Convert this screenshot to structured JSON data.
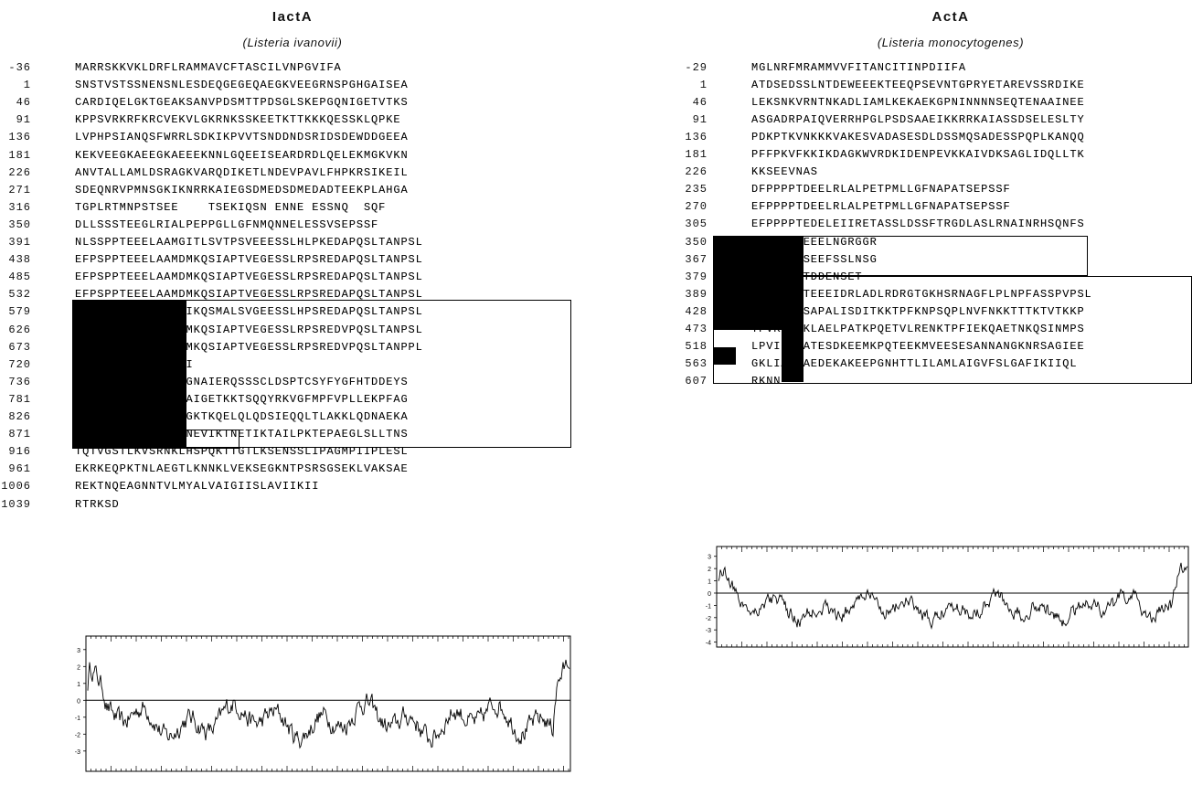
{
  "left": {
    "title": "IactA",
    "species": "(Listeria ivanovii)",
    "rows": [
      {
        "num": "-36",
        "seq": "MARRSKKVKLDRFLRAMMAVCFTASCILVNPGVIFA"
      },
      {
        "num": "1",
        "seq": "SNSTVSTSSNENSNLESDEQGEGEQAEGKVEEGRNSPGHGAISEA"
      },
      {
        "num": "46",
        "seq": "CARDIQELGKTGEAKSANVPDSMTTPDSGLSKEPGQNIGETVTKS"
      },
      {
        "num": "91",
        "seq": "KPPSVRKRFKRCVEKVLGKRNKSSKEETKTTKKKQESSKLQPKE"
      },
      {
        "num": "136",
        "seq": "LVPHPSIANQSFWRRLSDKIKPVVTSNDDNDSRIDSDEWDDGEEA"
      },
      {
        "num": "181",
        "seq": "KEKVEEGKAEEGKAEEEKNNLGQEEISEARDRDLQELEKMGKVKN"
      },
      {
        "num": "226",
        "seq": "ANVTALLAMLDSRAGKVARQDIKETLNDEVPAVLFHPKRSIKEIL"
      },
      {
        "num": "271",
        "seq": "SDEQNRVPMNSGKIKNRRKAIEGSDMEDSDMEDADTEEKPLAHGA"
      },
      {
        "num": "316",
        "seq": "TGPLRTMNPSTSEE    TSEKIQSN ENNE ESSNQ  SQF"
      },
      {
        "num": "350",
        "seq": "DLLSSSTEEGLRIALPEPPGLLGFNMQNNELESSVSEPSSF"
      },
      {
        "num": "391",
        "seq": "NLSSPPTEEELAAMGITLSVTPSVEEESSLHLPKEDAPQSLTANPSL"
      },
      {
        "num": "438",
        "seq": "EFPSPPTEEELAAMDMKQSIAPTVEGESSLRPSREDAPQSLTANPSL"
      },
      {
        "num": "485",
        "seq": "EFPSPPTEEELAAMDMKQSIAPTVEGESSLRPSREDAPQSLTANPSL"
      },
      {
        "num": "532",
        "seq": "EFPSPPTEEELAAMDMKQSIAPTVEGESSLRPSREDAPQSLTANPSL"
      },
      {
        "num": "579",
        "seq": "EFPSPPTEEELAAMGIKQSMALSVGEESSLHPSREDAPQSLTANPSL"
      },
      {
        "num": "626",
        "seq": "ELPSPPTEEELAAMDMKQSIAPTVEGESSLRPSREDVPQSLTANPSL"
      },
      {
        "num": "673",
        "seq": "ELPSPPTEEELAAMDMKQSIAPTVEGESSLRPSREDVPQSLTANPPL"
      },
      {
        "num": "720",
        "seq": "EFPSPPTRAELAAMGI"
      },
      {
        "num": "736",
        "seq": "FMFNDGLLRGDLGSAGNAIERQSSSCLDSPTCSYFYGFHTDDEYS"
      },
      {
        "num": "781",
        "seq": "DSEDELDSLLNPKVTAIGETKKTSQQYRKVGFMPFVPLLEKPFAG"
      },
      {
        "num": "826",
        "seq": "GNGTLAEEQIIKNPLGKTKQELQLQDSIEQQLTLAKKLQDNAEKA"
      },
      {
        "num": "871",
        "seq": "AETTEVSKTNETTKTNEVIKTNETIKTAILPKTEPAEGLSLLTNS"
      },
      {
        "num": "916",
        "seq": "TQTVGSTLKVSRNKLHSPQKTTGTLKSENSSLIPAGMPIIPLESL"
      },
      {
        "num": "961",
        "seq": "EKRKEQPKTNLAEGTLKNNKLVEKSEGKNTPSRSGSEKLVAKSAE"
      },
      {
        "num": "1006",
        "seq": "REKTNQEAGNNTVLMYALVAIGIISLAVIIKII"
      },
      {
        "num": "1039",
        "seq": "RTRKSD"
      }
    ],
    "plot": {
      "yticks": [
        "3",
        "2",
        "1",
        "0",
        "-1",
        "-2",
        "-3"
      ]
    }
  },
  "right": {
    "title": "ActA",
    "species": "(Listeria monocytogenes)",
    "rows": [
      {
        "num": "-29",
        "seq": "MGLNRFMRAMMVVFITANCITINPDIIFA"
      },
      {
        "num": "1",
        "seq": "ATDSEDSSLNTDEWEEEKTEEQPSEVNTGPRYETAREVSSRDIKE"
      },
      {
        "num": "46",
        "seq": "LEKSNKVRNTNKADLIAMLKEKAEKGPNINNNNSEQTENAAINEE"
      },
      {
        "num": "91",
        "seq": "ASGADRPAIQVERRHPGLPSDSAAEIKKRRKAIASSDSELESLTY"
      },
      {
        "num": "136",
        "seq": "PDKPTKVNKKKVAKESVADASESDLDSSMQSADESSPQPLKANQQ"
      },
      {
        "num": "181",
        "seq": "PFFPKVFKKIKDAGKWVRDKIDENPEVKKAIVDKSAGLIDQLLTK"
      },
      {
        "num": "226",
        "seq": "KKSEEVNAS"
      },
      {
        "num": "235",
        "seq": "DFPPPPTDEELRLALPETPMLLGFNAPATSEPSSF"
      },
      {
        "num": "270",
        "seq": "EFPPPPTDEELRLALPETPMLLGFNAPATSEPSSF"
      },
      {
        "num": "305",
        "seq": "EFPPPPTEDELEIIRETASSLDSSFTRGDLASLRNAINRHSQNFS"
      },
      {
        "num": "350",
        "seq": "DFPPIPTEEELNGRGGR"
      },
      {
        "num": "367",
        "seq": "     PTSEEFSSLNSG"
      },
      {
        "num": "379",
        "seq": "DF     TDDENSET"
      },
      {
        "num": "389",
        "seq": "       TEEEIDRLADLRDRGTGKHSRNAGFLPLNPFASSPVPSL"
      },
      {
        "num": "428",
        "seq": "SPKVSKISAPALISDITKKTPFKNPSQPLNVFNKKTTTKTVTKKP"
      },
      {
        "num": "473",
        "seq": "TPVKTAPKLAELPATKPQETVLRENKTPFIEKQAETNKQSINMPS"
      },
      {
        "num": "518",
        "seq": "LPVIQKEATESDKEEMKPQTEEKMVEESESANNANGKNRSAGIEE"
      },
      {
        "num": "563",
        "seq": "GKLIAKSAEDEKAKEEPGNHTTLILAMLAIGVFSLGAFIKIIQL"
      },
      {
        "num": "607",
        "seq": "RKNN"
      }
    ],
    "plot": {
      "yticks": [
        "3",
        "2",
        "1",
        "0",
        "-1",
        "-2",
        "-3",
        "-4"
      ]
    }
  }
}
